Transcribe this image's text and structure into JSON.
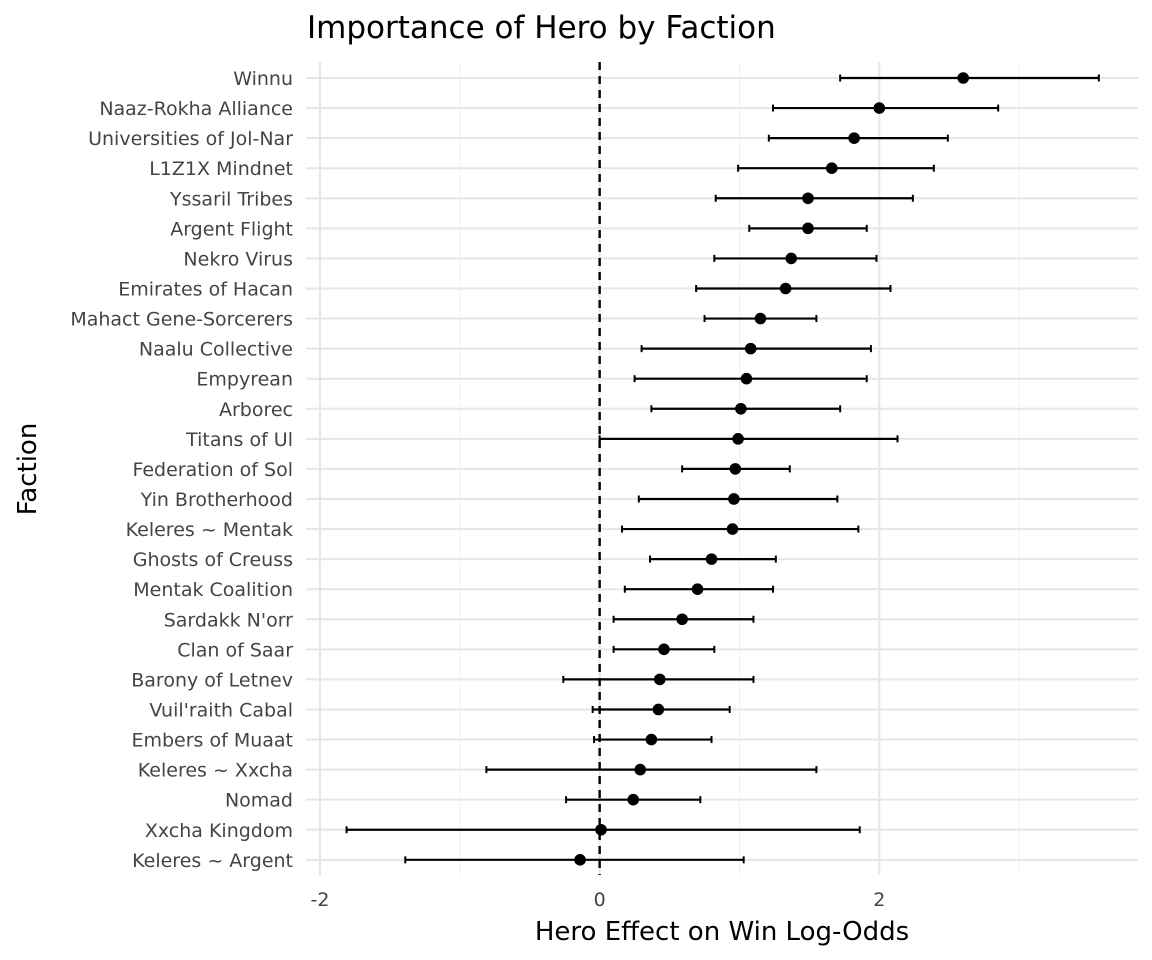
{
  "chart_data": {
    "type": "scatter",
    "title": "Importance of Hero by Faction",
    "xlabel": "Hero Effect on Win Log-Odds",
    "ylabel": "Faction",
    "xlim": [
      -2.1,
      3.85
    ],
    "xticks": [
      -2,
      0,
      2
    ],
    "xtick_labels": [
      "-2",
      "0",
      "2"
    ],
    "reference_line": {
      "x": 0,
      "style": "dashed"
    },
    "grid": true,
    "legend": "none",
    "series": [
      {
        "faction": "Winnu",
        "estimate": 2.6,
        "low": 1.72,
        "high": 3.57
      },
      {
        "faction": "Naaz-Rokha Alliance",
        "estimate": 2.0,
        "low": 1.24,
        "high": 2.85
      },
      {
        "faction": "Universities of Jol-Nar",
        "estimate": 1.82,
        "low": 1.21,
        "high": 2.49
      },
      {
        "faction": "L1Z1X Mindnet",
        "estimate": 1.66,
        "low": 0.99,
        "high": 2.39
      },
      {
        "faction": "Yssaril Tribes",
        "estimate": 1.49,
        "low": 0.83,
        "high": 2.24
      },
      {
        "faction": "Argent Flight",
        "estimate": 1.49,
        "low": 1.07,
        "high": 1.91
      },
      {
        "faction": "Nekro Virus",
        "estimate": 1.37,
        "low": 0.82,
        "high": 1.98
      },
      {
        "faction": "Emirates of Hacan",
        "estimate": 1.33,
        "low": 0.69,
        "high": 2.08
      },
      {
        "faction": "Mahact Gene-Sorcerers",
        "estimate": 1.15,
        "low": 0.75,
        "high": 1.55
      },
      {
        "faction": "Naalu Collective",
        "estimate": 1.08,
        "low": 0.3,
        "high": 1.94
      },
      {
        "faction": "Empyrean",
        "estimate": 1.05,
        "low": 0.25,
        "high": 1.91
      },
      {
        "faction": "Arborec",
        "estimate": 1.01,
        "low": 0.37,
        "high": 1.72
      },
      {
        "faction": "Titans of Ul",
        "estimate": 0.99,
        "low": 0.0,
        "high": 2.13
      },
      {
        "faction": "Federation of Sol",
        "estimate": 0.97,
        "low": 0.59,
        "high": 1.36
      },
      {
        "faction": "Yin Brotherhood",
        "estimate": 0.96,
        "low": 0.28,
        "high": 1.7
      },
      {
        "faction": "Keleres ~ Mentak",
        "estimate": 0.95,
        "low": 0.16,
        "high": 1.85
      },
      {
        "faction": "Ghosts of Creuss",
        "estimate": 0.8,
        "low": 0.36,
        "high": 1.26
      },
      {
        "faction": "Mentak Coalition",
        "estimate": 0.7,
        "low": 0.18,
        "high": 1.24
      },
      {
        "faction": "Sardakk N'orr",
        "estimate": 0.59,
        "low": 0.1,
        "high": 1.1
      },
      {
        "faction": "Clan of Saar",
        "estimate": 0.46,
        "low": 0.1,
        "high": 0.82
      },
      {
        "faction": "Barony of Letnev",
        "estimate": 0.43,
        "low": -0.26,
        "high": 1.1
      },
      {
        "faction": "Vuil'raith Cabal",
        "estimate": 0.42,
        "low": -0.05,
        "high": 0.93
      },
      {
        "faction": "Embers of Muaat",
        "estimate": 0.37,
        "low": -0.04,
        "high": 0.8
      },
      {
        "faction": "Keleres ~ Xxcha",
        "estimate": 0.29,
        "low": -0.81,
        "high": 1.55
      },
      {
        "faction": "Nomad",
        "estimate": 0.24,
        "low": -0.24,
        "high": 0.72
      },
      {
        "faction": "Xxcha Kingdom",
        "estimate": 0.01,
        "low": -1.81,
        "high": 1.86
      },
      {
        "faction": "Keleres ~ Argent",
        "estimate": -0.14,
        "low": -1.39,
        "high": 1.03
      }
    ]
  }
}
